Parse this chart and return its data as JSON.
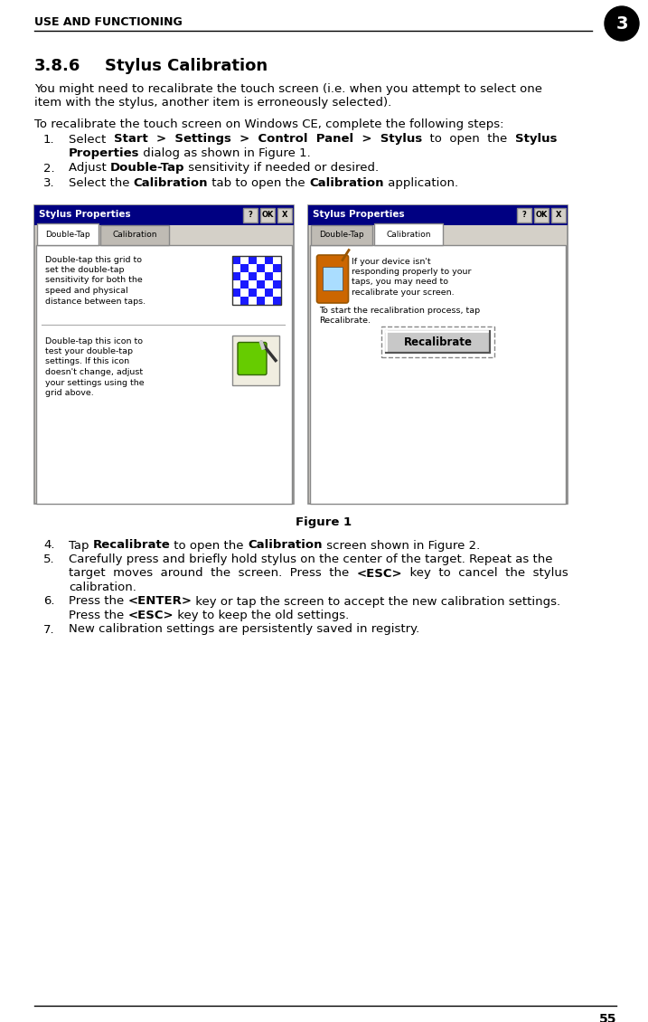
{
  "page_bg": "#ffffff",
  "header_text": "USE AND FUNCTIONING",
  "header_num": "3",
  "body_font_size": 9.5,
  "title_font_size": 13,
  "header_font_size": 9,
  "figure_caption": "Figure 1",
  "footer_num": "55"
}
